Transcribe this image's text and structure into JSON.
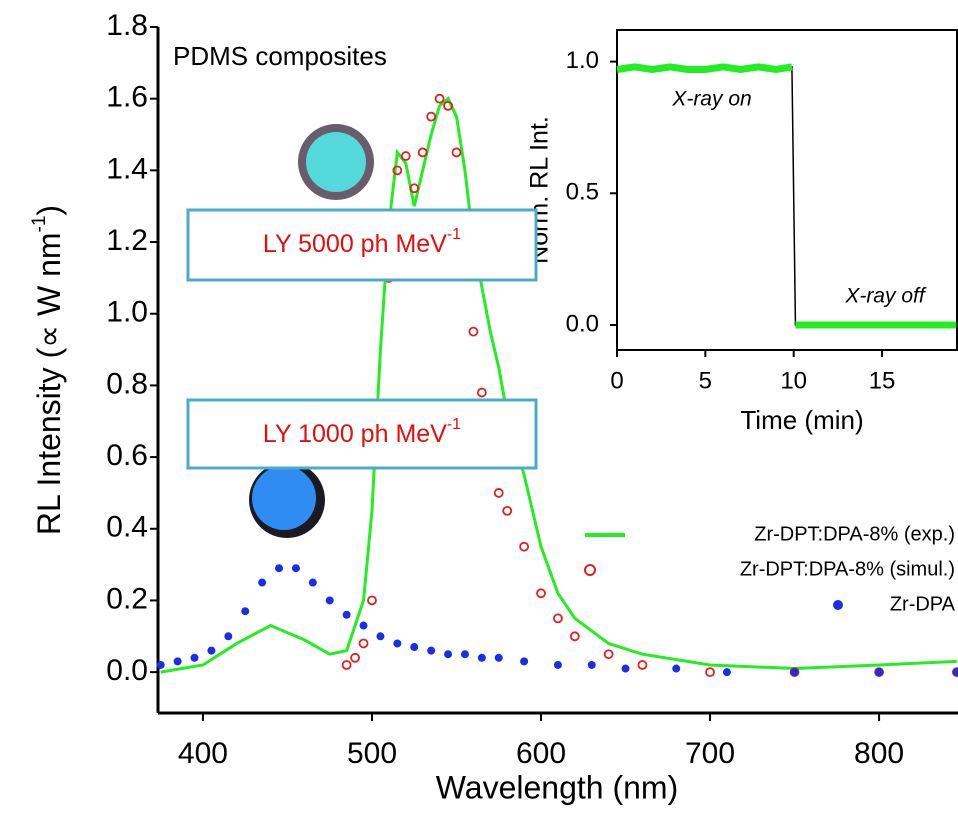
{
  "chart_data": [
    {
      "type": "line",
      "annotations": [
        "PDMS composites"
      ],
      "label_boxes": [
        [
          "LY 5000 ph MeV",
          "-1"
        ],
        [
          "LY 1000 ph MeV",
          "-1"
        ]
      ],
      "xlabel": "Wavelength (nm)",
      "ylabel": [
        "RL Intensity (∝ W nm",
        "-1",
        ")"
      ],
      "xlim": [
        373.4,
        846.7
      ],
      "ylim": [
        -0.114,
        1.8
      ],
      "xticks": [
        400,
        500,
        600,
        700,
        800
      ],
      "yticks": [
        {
          "value": 0,
          "label": "0.0"
        },
        {
          "value": 0.2,
          "label": "0.2"
        },
        {
          "value": 0.4,
          "label": "0.4"
        },
        {
          "value": 0.6,
          "label": "0.6"
        },
        {
          "value": 0.8,
          "label": "0.8"
        },
        {
          "value": 1.0,
          "label": "1.0"
        },
        {
          "value": 1.2,
          "label": "1.2"
        },
        {
          "value": 1.4,
          "label": "1.4"
        },
        {
          "value": 1.6,
          "label": "1.6"
        },
        {
          "value": 1.8,
          "label": "1.8"
        }
      ],
      "series": [
        {
          "name": "Zr-DPT:DPA-8% (exp.)",
          "color": "#22ee22",
          "marker": "line",
          "x": [
            375,
            400,
            420,
            440,
            450,
            460,
            475,
            485,
            495,
            500,
            505,
            510,
            515,
            520,
            525,
            530,
            535,
            540,
            545,
            550,
            555,
            560,
            570,
            575,
            580,
            590,
            600,
            610,
            620,
            640,
            660,
            700,
            750,
            800,
            846
          ],
          "values": [
            0.0,
            0.02,
            0.08,
            0.13,
            0.11,
            0.09,
            0.05,
            0.06,
            0.2,
            0.45,
            0.9,
            1.25,
            1.45,
            1.42,
            1.3,
            1.4,
            1.5,
            1.58,
            1.6,
            1.55,
            1.4,
            1.2,
            0.95,
            0.85,
            0.72,
            0.55,
            0.35,
            0.22,
            0.15,
            0.08,
            0.05,
            0.02,
            0.01,
            0.02,
            0.03
          ]
        },
        {
          "name": "Zr-DPT:DPA-8% (simul.)",
          "color": "#e02020",
          "marker": "circle-open",
          "x": [
            485,
            490,
            495,
            500,
            505,
            510,
            515,
            520,
            525,
            530,
            535,
            540,
            545,
            550,
            555,
            560,
            565,
            570,
            575,
            580,
            590,
            600,
            610,
            620,
            640,
            660,
            700,
            750,
            800,
            846
          ],
          "values": [
            0.02,
            0.04,
            0.08,
            0.2,
            0.6,
            1.1,
            1.4,
            1.44,
            1.35,
            1.45,
            1.55,
            1.6,
            1.58,
            1.45,
            1.2,
            0.95,
            0.78,
            0.6,
            0.5,
            0.45,
            0.35,
            0.22,
            0.15,
            0.1,
            0.05,
            0.02,
            0.0,
            0.0,
            0.0,
            0.0
          ]
        },
        {
          "name": "Zr-DPA",
          "color": "#1a2ee6",
          "marker": "circle",
          "x": [
            375,
            385,
            395,
            405,
            415,
            425,
            435,
            445,
            455,
            465,
            475,
            485,
            495,
            505,
            515,
            525,
            535,
            545,
            555,
            565,
            575,
            590,
            610,
            630,
            650,
            680,
            710,
            750,
            800,
            846
          ],
          "values": [
            0.02,
            0.03,
            0.04,
            0.06,
            0.1,
            0.17,
            0.25,
            0.29,
            0.29,
            0.25,
            0.2,
            0.16,
            0.13,
            0.1,
            0.08,
            0.07,
            0.06,
            0.05,
            0.05,
            0.04,
            0.04,
            0.03,
            0.02,
            0.02,
            0.01,
            0.01,
            0.0,
            0.0,
            0.0,
            0.0
          ]
        }
      ]
    },
    {
      "type": "line",
      "annotations": [
        "X-ray on",
        "X-ray off"
      ],
      "xlabel": "Time (min)",
      "ylabel": "Norm. RL Int.",
      "xlim": [
        0,
        19.3
      ],
      "ylim": [
        -0.095,
        1.12
      ],
      "xticks": [
        0,
        5,
        10,
        15
      ],
      "yticks": [
        {
          "value": 0,
          "label": "0.0"
        },
        {
          "value": 0.5,
          "label": "0.5"
        },
        {
          "value": 1.0,
          "label": "1.0"
        }
      ],
      "series": [
        {
          "color": "#22ee22",
          "x": [
            0,
            1,
            2,
            3,
            4,
            5,
            6,
            7,
            8,
            9,
            9.9,
            10.1,
            11,
            12,
            13,
            14,
            15,
            16,
            17,
            18,
            19.2
          ],
          "values": [
            0.97,
            0.98,
            0.97,
            0.98,
            0.97,
            0.97,
            0.98,
            0.97,
            0.98,
            0.97,
            0.98,
            0.0,
            0.0,
            0.0,
            0.0,
            0.0,
            0.0,
            0.0,
            0.0,
            0.0,
            0.0
          ]
        }
      ]
    }
  ]
}
